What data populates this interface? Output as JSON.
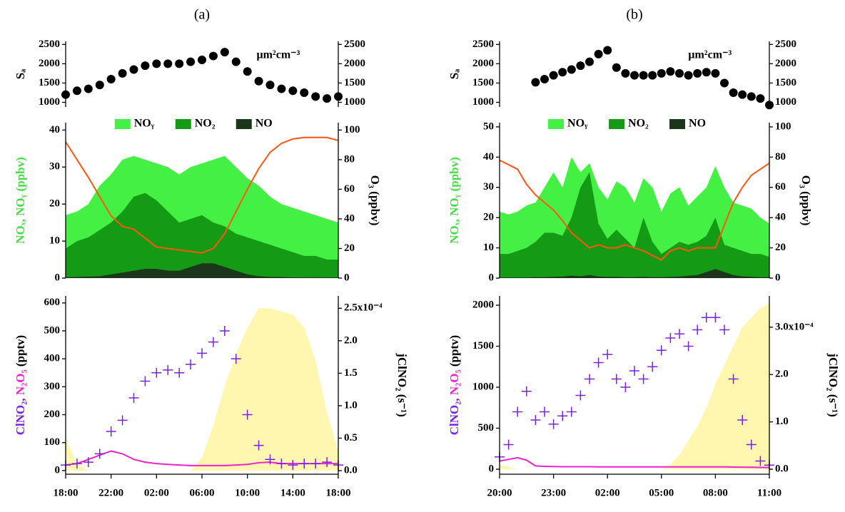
{
  "chart_data": [
    {
      "type": "line",
      "title": "(a)",
      "ylabel": [
        "Sₐ"
      ],
      "ylabel_colors": [
        "#000000"
      ],
      "annotation": "μm²cm⁻³",
      "x": [
        18,
        19,
        20,
        21,
        22,
        23,
        24,
        25,
        26,
        27,
        28,
        29,
        30,
        31,
        32,
        33,
        34,
        35,
        36,
        37,
        38,
        39,
        40,
        41,
        42
      ],
      "xlim": [
        18,
        42
      ],
      "ylim": [
        880,
        2580
      ],
      "yticks": [
        1000,
        1500,
        2000,
        2500
      ],
      "y2lim": [
        880,
        2580
      ],
      "y2ticks": [
        1000,
        1500,
        2000,
        2500
      ],
      "series": [
        {
          "type": "scatter",
          "marker": "circle",
          "color": "#000000",
          "values": [
            1200,
            1300,
            1350,
            1450,
            1600,
            1750,
            1850,
            1950,
            2000,
            2000,
            2000,
            2050,
            2100,
            2200,
            2300,
            2050,
            1800,
            1550,
            1450,
            1350,
            1300,
            1250,
            1150,
            1100,
            1150
          ]
        }
      ]
    },
    {
      "type": "line",
      "ylabel": [
        "NOₓ, NOᵧ (ppbv)"
      ],
      "ylabel_colors": [
        "#44dd44"
      ],
      "y2label": "O₃ (ppbv)",
      "y2label_color": "#ff5511",
      "legend": "top",
      "x": [
        18,
        19,
        20,
        21,
        22,
        23,
        24,
        25,
        26,
        27,
        28,
        29,
        30,
        31,
        32,
        33,
        34,
        35,
        36,
        37,
        38,
        39,
        40,
        41,
        42
      ],
      "xlim": [
        18,
        42
      ],
      "ylim": [
        0,
        42
      ],
      "yticks": [
        0,
        10,
        20,
        30,
        40
      ],
      "y2lim": [
        0,
        105
      ],
      "y2ticks": [
        0,
        20,
        40,
        60,
        80,
        100
      ],
      "series": [
        {
          "name": "NOᵧ",
          "type": "area",
          "color": "#44f044",
          "values": [
            17,
            18,
            20,
            25,
            28,
            32,
            33,
            32,
            31,
            30,
            28,
            30,
            31,
            32,
            33,
            30,
            27,
            25,
            22,
            20,
            19,
            18,
            17,
            16,
            15
          ]
        },
        {
          "name": "NO₂",
          "type": "area",
          "color": "#159a15",
          "values": [
            8,
            10,
            11,
            13,
            15,
            18,
            22,
            23,
            21,
            18,
            15,
            16,
            17,
            15,
            14,
            12,
            11,
            10,
            9,
            8,
            7,
            6,
            6,
            5,
            5
          ]
        },
        {
          "name": "NO",
          "type": "area",
          "color": "#1c361c",
          "values": [
            0.3,
            0.3,
            0.4,
            0.5,
            1,
            1.5,
            2,
            2.5,
            2.5,
            2,
            2,
            3,
            4,
            4,
            3,
            2,
            1,
            0.5,
            0.3,
            0.3,
            0.2,
            0.2,
            0.2,
            0.2,
            0.2
          ]
        },
        {
          "type": "line",
          "axis": "y2",
          "color": "#ff5511",
          "values": [
            92,
            80,
            68,
            55,
            42,
            35,
            33,
            27,
            21,
            20,
            19,
            18,
            17,
            20,
            30,
            45,
            60,
            74,
            85,
            91,
            94,
            95,
            95,
            95,
            93
          ]
        }
      ]
    },
    {
      "type": "line",
      "ylabel": [
        "ClNO₂, ",
        "N₂O₅ ",
        "(pptv)"
      ],
      "ylabel_colors": [
        "#7a22dd",
        "#ee22cc",
        "#000000"
      ],
      "y2label": "jClNO₂ (s⁻¹)",
      "y2label_color": "#a8a030",
      "x": [
        18,
        19,
        20,
        21,
        22,
        23,
        24,
        25,
        26,
        27,
        28,
        29,
        30,
        31,
        32,
        33,
        34,
        35,
        36,
        37,
        38,
        39,
        40,
        41,
        42
      ],
      "xlim": [
        18,
        42
      ],
      "xticks": [
        {
          "value": 18,
          "label": "18:00"
        },
        {
          "value": 22,
          "label": "22:00"
        },
        {
          "value": 26,
          "label": "02:00"
        },
        {
          "value": 30,
          "label": "06:00"
        },
        {
          "value": 34,
          "label": "10:00"
        },
        {
          "value": 38,
          "label": "14:00"
        },
        {
          "value": 42,
          "label": "18:00"
        }
      ],
      "ylim": [
        -13,
        625
      ],
      "yticks": [
        0,
        100,
        200,
        300,
        400,
        500,
        600
      ],
      "y2lim": [
        -5.5e-06,
        0.000269
      ],
      "y2ticks": [
        {
          "value": 0,
          "label": "0.0"
        },
        {
          "value": 5e-05,
          "label": "0.5"
        },
        {
          "value": 0.0001,
          "label": "1.0"
        },
        {
          "value": 0.00015,
          "label": "1.5"
        },
        {
          "value": 0.0002,
          "label": "2.0"
        },
        {
          "value": 0.00025,
          "label": "2.5x10⁻⁴"
        }
      ],
      "series": [
        {
          "type": "area",
          "axis": "y2",
          "color": "#fff6b0",
          "values": [
            5e-05,
            1e-05,
            0,
            0,
            0,
            0,
            0,
            0,
            0,
            0,
            0,
            0,
            2e-05,
            7e-05,
            0.00013,
            0.00018,
            0.00022,
            0.00025,
            0.00025,
            0.000245,
            0.00024,
            0.00022,
            0.00017,
            9e-05,
            3e-05
          ]
        },
        {
          "type": "line",
          "color": "#ee22cc",
          "values": [
            20,
            25,
            40,
            55,
            70,
            60,
            40,
            30,
            25,
            22,
            20,
            18,
            18,
            18,
            18,
            20,
            22,
            28,
            30,
            25,
            25,
            25,
            25,
            25,
            25
          ]
        },
        {
          "type": "scatter",
          "marker": "plus",
          "color": "#7a22dd",
          "values": [
            20,
            25,
            30,
            60,
            140,
            180,
            260,
            320,
            350,
            360,
            350,
            380,
            420,
            460,
            500,
            400,
            200,
            90,
            40,
            25,
            20,
            25,
            25,
            30,
            20
          ]
        }
      ]
    },
    {
      "type": "line",
      "title": "(b)",
      "ylabel": [
        "Sₐ"
      ],
      "ylabel_colors": [
        "#000000"
      ],
      "annotation": "μm²cm⁻³",
      "x": [
        20,
        20.5,
        21,
        21.5,
        22,
        22.5,
        23,
        23.5,
        24,
        24.5,
        25,
        25.5,
        26,
        26.5,
        27,
        27.5,
        28,
        28.5,
        29,
        29.5,
        30,
        30.5,
        31,
        31.5,
        32,
        32.5,
        33,
        33.5,
        34,
        34.5,
        35
      ],
      "xlim": [
        20,
        35
      ],
      "ylim": [
        880,
        2580
      ],
      "yticks": [
        1000,
        1500,
        2000,
        2500
      ],
      "y2lim": [
        880,
        2580
      ],
      "y2ticks": [
        1000,
        1500,
        2000,
        2500
      ],
      "series": [
        {
          "type": "scatter",
          "marker": "circle",
          "color": "#000000",
          "values": [
            null,
            null,
            null,
            null,
            1520,
            1600,
            1700,
            1780,
            1850,
            1950,
            2050,
            2250,
            2350,
            1900,
            1750,
            1700,
            1700,
            1700,
            1750,
            1800,
            1750,
            1700,
            1750,
            1780,
            1750,
            1500,
            1250,
            1200,
            1150,
            1100,
            930
          ]
        }
      ]
    },
    {
      "type": "line",
      "ylabel": [
        "NOₓ, NOᵧ (ppbv)"
      ],
      "ylabel_colors": [
        "#44dd44"
      ],
      "y2label": "O₃ (ppbv)",
      "y2label_color": "#ff5511",
      "legend": "top",
      "x": [
        20,
        20.5,
        21,
        21.5,
        22,
        22.5,
        23,
        23.5,
        24,
        24.5,
        25,
        25.5,
        26,
        26.5,
        27,
        27.5,
        28,
        28.5,
        29,
        29.5,
        30,
        30.5,
        31,
        31.5,
        32,
        32.5,
        33,
        33.5,
        34,
        34.5,
        35
      ],
      "xlim": [
        20,
        35
      ],
      "ylim": [
        0,
        51.4
      ],
      "yticks": [
        0,
        10,
        20,
        30,
        40,
        50
      ],
      "y2lim": [
        0,
        102.8
      ],
      "y2ticks": [
        0,
        20,
        40,
        60,
        80,
        100
      ],
      "series": [
        {
          "name": "NOᵧ",
          "type": "area",
          "color": "#44f044",
          "values": [
            22,
            21,
            22,
            24,
            25,
            30,
            35,
            30,
            40,
            35,
            38,
            30,
            26,
            32,
            30,
            25,
            33,
            30,
            22,
            28,
            30,
            24,
            27,
            30,
            37,
            30,
            25,
            24,
            23,
            20,
            18
          ]
        },
        {
          "name": "NO₂",
          "type": "area",
          "color": "#159a15",
          "values": [
            8,
            8,
            9,
            10,
            12,
            15,
            15,
            14,
            20,
            30,
            35,
            18,
            13,
            16,
            13,
            10,
            20,
            12,
            8,
            10,
            12,
            11,
            12,
            14,
            20,
            11,
            10,
            9,
            8,
            8,
            7
          ]
        },
        {
          "name": "NO",
          "type": "area",
          "color": "#1c361c",
          "values": [
            0.2,
            0.2,
            0.2,
            0.2,
            0.3,
            0.3,
            0.4,
            0.5,
            0.8,
            0.6,
            1,
            0.5,
            0.4,
            0.4,
            0.3,
            0.3,
            0.4,
            0.3,
            0.3,
            0.4,
            0.5,
            0.8,
            1,
            2,
            3,
            2,
            1,
            0.6,
            0.4,
            0.3,
            0.3
          ]
        },
        {
          "type": "line",
          "axis": "y2",
          "color": "#ff5511",
          "values": [
            78,
            75,
            72,
            62,
            55,
            50,
            45,
            38,
            30,
            25,
            20,
            22,
            20,
            20,
            22,
            20,
            18,
            15,
            12,
            18,
            20,
            18,
            20,
            20,
            20,
            35,
            50,
            60,
            68,
            72,
            76
          ]
        }
      ]
    },
    {
      "type": "line",
      "ylabel": [
        "ClNO₂, ",
        "N₂O₅ ",
        "(pptv)"
      ],
      "ylabel_colors": [
        "#7a22dd",
        "#ee22cc",
        "#000000"
      ],
      "y2label": "jClNO₂ (s⁻¹)",
      "y2label_color": "#a8a030",
      "x": [
        20,
        20.5,
        21,
        21.5,
        22,
        22.5,
        23,
        23.5,
        24,
        24.5,
        25,
        25.5,
        26,
        26.5,
        27,
        27.5,
        28,
        28.5,
        29,
        29.5,
        30,
        30.5,
        31,
        31.5,
        32,
        32.5,
        33,
        33.5,
        34,
        34.5,
        35
      ],
      "xlim": [
        20,
        35
      ],
      "xticks": [
        {
          "value": 20,
          "label": "20:00"
        },
        {
          "value": 23,
          "label": "23:00"
        },
        {
          "value": 26,
          "label": "02:00"
        },
        {
          "value": 29,
          "label": "05:00"
        },
        {
          "value": 32,
          "label": "08:00"
        },
        {
          "value": 35,
          "label": "11:00"
        }
      ],
      "ylim": [
        -61,
        2113
      ],
      "yticks": [
        0,
        500,
        1000,
        1500,
        2000
      ],
      "y2lim": [
        -1.05e-05,
        0.000366
      ],
      "y2ticks": [
        {
          "value": 0,
          "label": "0.0"
        },
        {
          "value": 0.0001,
          "label": "1.0"
        },
        {
          "value": 0.0002,
          "label": "2.0"
        },
        {
          "value": 0.0003,
          "label": "3.0x10⁻⁴"
        }
      ],
      "series": [
        {
          "type": "area",
          "axis": "y2",
          "color": "#fff6b0",
          "values": [
            1e-05,
            5e-06,
            0,
            0,
            0,
            0,
            0,
            0,
            0,
            0,
            0,
            0,
            0,
            0,
            0,
            0,
            0,
            0,
            0,
            1e-05,
            3e-05,
            6e-05,
            9e-05,
            0.00013,
            0.00018,
            0.00022,
            0.00026,
            0.0003,
            0.00032,
            0.00034,
            0.00035
          ]
        },
        {
          "type": "line",
          "color": "#ee22cc",
          "values": [
            100,
            120,
            140,
            110,
            40,
            35,
            32,
            30,
            30,
            30,
            30,
            28,
            28,
            28,
            28,
            28,
            28,
            28,
            28,
            28,
            28,
            28,
            28,
            28,
            28,
            28,
            26,
            25,
            24,
            22,
            20
          ]
        },
        {
          "type": "scatter",
          "marker": "plus",
          "color": "#7a22dd",
          "values": [
            150,
            300,
            700,
            950,
            600,
            700,
            550,
            650,
            700,
            900,
            1100,
            1300,
            1400,
            1100,
            1000,
            1200,
            1100,
            1250,
            1450,
            1600,
            1650,
            1500,
            1700,
            1850,
            1850,
            1700,
            1100,
            600,
            300,
            100,
            50
          ]
        }
      ]
    }
  ]
}
